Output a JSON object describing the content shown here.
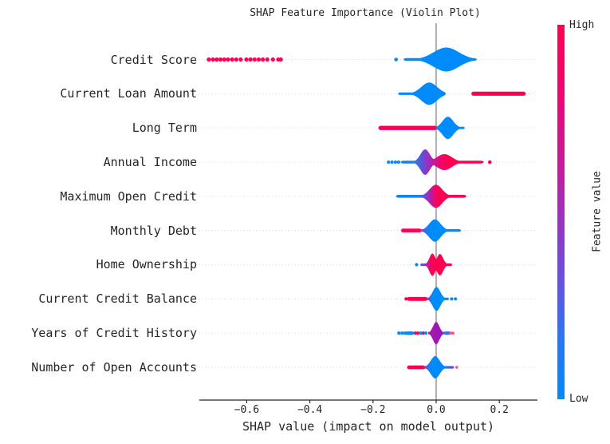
{
  "chart_data": {
    "type": "violin",
    "title": "SHAP Feature Importance (Violin Plot)",
    "xlabel": "SHAP value (impact on model output)",
    "x_tick_values": [
      -0.6,
      -0.4,
      -0.2,
      0.0,
      0.2
    ],
    "x_tick_labels": [
      "−0.6",
      "−0.4",
      "−0.2",
      "0.0",
      "0.2"
    ],
    "xlim": [
      -0.75,
      0.32
    ],
    "grid": "dotted horizontal per feature row",
    "legend_position": "colorbar right",
    "colors": {
      "high": "#ff0051",
      "low": "#008bfb",
      "mid_purple": "#9a15b5",
      "zero_line": "#8f8f8f",
      "grid": "#d4d4d4",
      "axis": "#262626"
    },
    "colorbar": {
      "label": "Feature value",
      "high_label": "High",
      "low_label": "Low",
      "stops": [
        [
          "#ff0051",
          0
        ],
        [
          "#ee0576",
          20
        ],
        [
          "#c11da4",
          40
        ],
        [
          "#9336c9",
          55
        ],
        [
          "#5f55e6",
          70
        ],
        [
          "#2579f5",
          85
        ],
        [
          "#008bfb",
          100
        ]
      ]
    },
    "features": [
      {
        "name": "Credit Score",
        "segments": [
          {
            "kind": "dots",
            "color": "#ff0051",
            "r": 2.6,
            "xs": [
              -0.72,
              -0.707,
              -0.695,
              -0.683,
              -0.671,
              -0.659,
              -0.646,
              -0.633,
              -0.619,
              -0.601,
              -0.588,
              -0.575,
              -0.562,
              -0.549,
              -0.535,
              -0.517,
              -0.5,
              -0.492
            ]
          },
          {
            "kind": "dot",
            "x": -0.127,
            "color": "#008bfb",
            "r": 2.3
          },
          {
            "kind": "violin",
            "x0": -0.103,
            "x1": 0.128,
            "tail": 1.7,
            "peaks": [
              {
                "c": 0.032,
                "half": 15,
                "sigma": 0.04
              }
            ],
            "stops": [
              [
                0,
                "#008bfb"
              ],
              [
                1,
                "#008bfb"
              ]
            ]
          }
        ]
      },
      {
        "name": "Current Loan Amount",
        "segments": [
          {
            "kind": "violin",
            "x0": -0.12,
            "x1": 0.03,
            "tail": 1.6,
            "peaks": [
              {
                "c": -0.022,
                "half": 14,
                "sigma": 0.025
              }
            ],
            "stops": [
              [
                0,
                "#008bfb"
              ],
              [
                1,
                "#008bfb"
              ]
            ]
          },
          {
            "kind": "strip",
            "x0": 0.118,
            "x1": 0.277,
            "half": 2.6,
            "color": "#ff0051"
          }
        ]
      },
      {
        "name": "Long Term",
        "segments": [
          {
            "kind": "strip",
            "x0": -0.176,
            "x1": -0.004,
            "half": 2.7,
            "color": "#ff0051"
          },
          {
            "kind": "violin",
            "x0": -0.001,
            "x1": 0.09,
            "tail": 1.4,
            "peaks": [
              {
                "c": 0.037,
                "half": 14,
                "sigma": 0.017
              }
            ],
            "stops": [
              [
                0,
                "#008bfb"
              ],
              [
                1,
                "#008bfb"
              ]
            ]
          }
        ]
      },
      {
        "name": "Annual Income",
        "segments": [
          {
            "kind": "dots",
            "color": "#008bfb",
            "r": 2.1,
            "xs": [
              -0.151,
              -0.14,
              -0.129,
              -0.119
            ]
          },
          {
            "kind": "violin",
            "x0": -0.112,
            "x1": 0.15,
            "tail": 1.7,
            "peaks": [
              {
                "c": -0.035,
                "half": 16,
                "sigma": 0.015
              },
              {
                "c": 0.026,
                "half": 10,
                "sigma": 0.024
              }
            ],
            "stops": [
              [
                0,
                "#008bfb"
              ],
              [
                0.18,
                "#2b78ea"
              ],
              [
                0.27,
                "#6a4ad5"
              ],
              [
                0.33,
                "#9b2fc0"
              ],
              [
                0.4,
                "#c617a0"
              ],
              [
                0.47,
                "#ee0574"
              ],
              [
                0.55,
                "#ff0051"
              ],
              [
                1,
                "#ff0051"
              ]
            ]
          },
          {
            "kind": "dot",
            "x": 0.17,
            "color": "#ff0051",
            "r": 2.3
          }
        ]
      },
      {
        "name": "Maximum Open Credit",
        "segments": [
          {
            "kind": "violin",
            "x0": -0.127,
            "x1": 0.095,
            "tail": 1.8,
            "peaks": [
              {
                "c": -0.001,
                "half": 14.5,
                "sigma": 0.02
              }
            ],
            "stops": [
              [
                0,
                "#008bfb"
              ],
              [
                0.32,
                "#1583f4"
              ],
              [
                0.42,
                "#7a42d6"
              ],
              [
                0.5,
                "#c016a0"
              ],
              [
                0.57,
                "#f2065f"
              ],
              [
                0.63,
                "#ff0051"
              ],
              [
                1,
                "#ff0051"
              ]
            ]
          }
        ]
      },
      {
        "name": "Monthly Debt",
        "segments": [
          {
            "kind": "strip",
            "x0": -0.105,
            "x1": -0.053,
            "half": 2.4,
            "color": "#ff0051"
          },
          {
            "kind": "violin",
            "x0": -0.05,
            "x1": 0.078,
            "tail": 1.6,
            "peaks": [
              {
                "c": -0.004,
                "half": 14,
                "sigma": 0.018
              }
            ],
            "stops": [
              [
                0,
                "#c02da0"
              ],
              [
                0.08,
                "#5b55dd"
              ],
              [
                0.18,
                "#0d86f6"
              ],
              [
                0.3,
                "#008bfb"
              ],
              [
                1,
                "#008bfb"
              ]
            ]
          }
        ]
      },
      {
        "name": "Home Ownership",
        "segments": [
          {
            "kind": "dot",
            "x": -0.062,
            "color": "#008bfb",
            "r": 2.1
          },
          {
            "kind": "violin",
            "x0": -0.05,
            "x1": 0.05,
            "tail": 1.6,
            "peaks": [
              {
                "c": -0.012,
                "half": 14,
                "sigma": 0.0095
              },
              {
                "c": 0.012,
                "half": 13.5,
                "sigma": 0.01
              }
            ],
            "stops": [
              [
                0,
                "#2f6fe4"
              ],
              [
                0.12,
                "#7a42d6"
              ],
              [
                0.22,
                "#c31b9b"
              ],
              [
                0.32,
                "#f20560"
              ],
              [
                0.4,
                "#ff0051"
              ],
              [
                1,
                "#ff0051"
              ]
            ]
          }
        ]
      },
      {
        "name": "Current Credit Balance",
        "segments": [
          {
            "kind": "dot",
            "x": -0.095,
            "color": "#ff0051",
            "r": 2.2
          },
          {
            "kind": "strip",
            "x0": -0.086,
            "x1": -0.034,
            "half": 2.4,
            "color": "#ff0051"
          },
          {
            "kind": "violin",
            "x0": -0.031,
            "x1": 0.04,
            "tail": 1.6,
            "peaks": [
              {
                "c": 0.001,
                "half": 15,
                "sigma": 0.012
              }
            ],
            "stops": [
              [
                0,
                "#d6156e"
              ],
              [
                0.08,
                "#8a3bca"
              ],
              [
                0.18,
                "#2b78ea"
              ],
              [
                0.28,
                "#008bfb"
              ],
              [
                1,
                "#008bfb"
              ]
            ]
          },
          {
            "kind": "dots",
            "color": "#008bfb",
            "r": 2.1,
            "xs": [
              0.049,
              0.061
            ]
          }
        ]
      },
      {
        "name": "Years of Credit History",
        "segments": [
          {
            "kind": "dots",
            "color": "#008bfb",
            "r": 2.1,
            "xs": [
              -0.118,
              -0.108,
              -0.099
            ]
          },
          {
            "kind": "strip",
            "x0": -0.092,
            "x1": -0.076,
            "half": 2.2,
            "color": "#008bfb"
          },
          {
            "kind": "dots",
            "color": "#ff0051",
            "r": 2.1,
            "xs": [
              -0.066,
              -0.058
            ]
          },
          {
            "kind": "dot",
            "x": -0.049,
            "color": "#008bfb",
            "r": 2.1
          },
          {
            "kind": "dot",
            "x": -0.041,
            "color": "#ff0051",
            "r": 2.1
          },
          {
            "kind": "dot",
            "x": -0.033,
            "color": "#008bfb",
            "r": 2.1
          },
          {
            "kind": "violin",
            "x0": -0.026,
            "x1": 0.027,
            "tail": 1.5,
            "peaks": [
              {
                "c": 0.0,
                "half": 14,
                "sigma": 0.01
              }
            ],
            "stops": [
              [
                0,
                "#c217a0"
              ],
              [
                0.15,
                "#a318b2"
              ],
              [
                0.8,
                "#9a15b5"
              ],
              [
                1,
                "#7438cf"
              ]
            ]
          },
          {
            "kind": "strip",
            "x0": 0.03,
            "x1": 0.04,
            "half": 2.1,
            "color": "#2579f5"
          },
          {
            "kind": "dots",
            "color": "#ff4d86",
            "r": 1.9,
            "xs": [
              0.046,
              0.053
            ]
          }
        ]
      },
      {
        "name": "Number of Open Accounts",
        "segments": [
          {
            "kind": "strip",
            "x0": -0.086,
            "x1": -0.041,
            "half": 2.4,
            "color": "#ff0051"
          },
          {
            "kind": "violin",
            "x0": -0.038,
            "x1": 0.056,
            "tail": 1.6,
            "peaks": [
              {
                "c": -0.003,
                "half": 14,
                "sigma": 0.014
              }
            ],
            "stops": [
              [
                0,
                "#c524a0"
              ],
              [
                0.08,
                "#5b55dd"
              ],
              [
                0.18,
                "#0d86f6"
              ],
              [
                0.3,
                "#008bfb"
              ],
              [
                0.72,
                "#0d86f6"
              ],
              [
                0.85,
                "#5b55dd"
              ],
              [
                1,
                "#9a30c5"
              ]
            ]
          },
          {
            "kind": "dot",
            "x": 0.065,
            "color": "#f25f96",
            "r": 1.8
          }
        ]
      }
    ]
  }
}
